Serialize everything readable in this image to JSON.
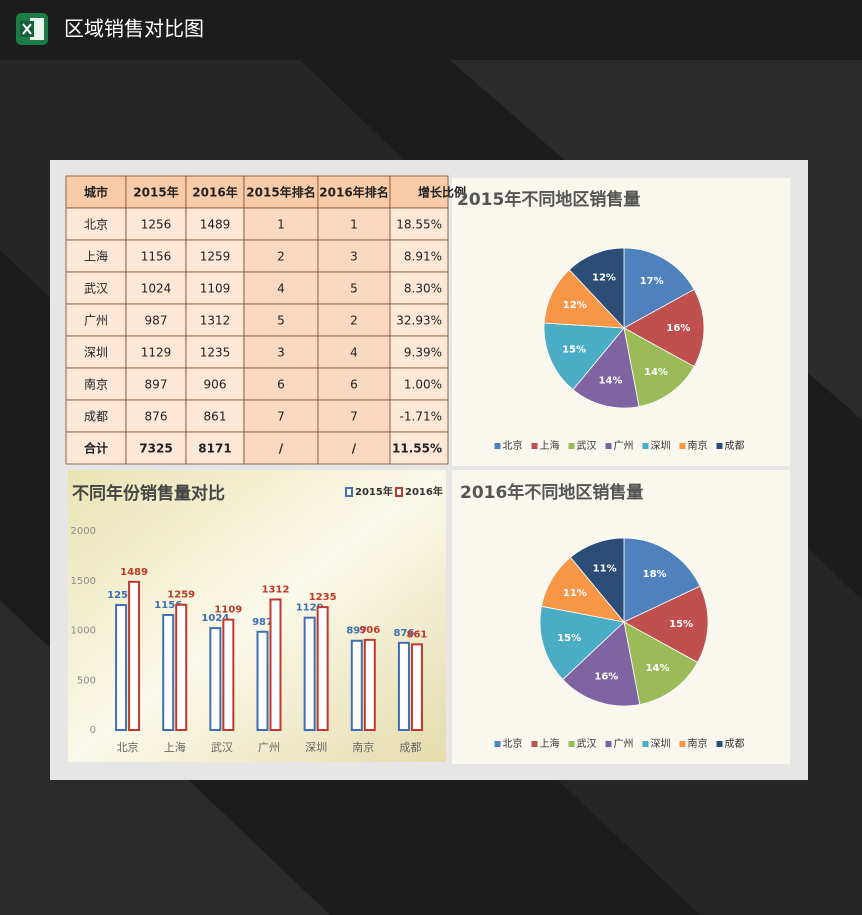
{
  "header": {
    "title": "区域销售对比图"
  },
  "table": {
    "columns": [
      "城市",
      "2015年",
      "2016年",
      "2015年排名",
      "2016年排名",
      "增长比例"
    ],
    "rows": [
      [
        "北京",
        "1256",
        "1489",
        "1",
        "1",
        "18.55%"
      ],
      [
        "上海",
        "1156",
        "1259",
        "2",
        "3",
        "8.91%"
      ],
      [
        "武汉",
        "1024",
        "1109",
        "4",
        "5",
        "8.30%"
      ],
      [
        "广州",
        "987",
        "1312",
        "5",
        "2",
        "32.93%"
      ],
      [
        "深圳",
        "1129",
        "1235",
        "3",
        "4",
        "9.39%"
      ],
      [
        "南京",
        "897",
        "906",
        "6",
        "6",
        "1.00%"
      ],
      [
        "成都",
        "876",
        "861",
        "7",
        "7",
        "-1.71%"
      ],
      [
        "合计",
        "7325",
        "8171",
        "/",
        "/",
        "11.55%"
      ]
    ]
  },
  "chart_data": [
    {
      "type": "bar",
      "title": "不同年份销售量对比",
      "categories": [
        "北京",
        "上海",
        "武汉",
        "广州",
        "深圳",
        "南京",
        "成都"
      ],
      "series": [
        {
          "name": "2015年",
          "color": "#3f6fb0",
          "values": [
            1256,
            1156,
            1024,
            987,
            1129,
            897,
            876
          ]
        },
        {
          "name": "2016年",
          "color": "#c0392b",
          "values": [
            1489,
            1259,
            1109,
            1312,
            1235,
            906,
            861
          ]
        }
      ],
      "ylim": [
        0,
        2000
      ],
      "yticks": [
        0,
        500,
        1000,
        1500,
        2000
      ],
      "legend": "top-right"
    },
    {
      "type": "pie",
      "title": "2015年不同地区销售量",
      "categories": [
        "北京",
        "上海",
        "武汉",
        "广州",
        "深圳",
        "南京",
        "成都"
      ],
      "values": [
        17,
        16,
        14,
        14,
        15,
        12,
        12
      ],
      "value_labels": [
        "17%",
        "16%",
        "14%",
        "14%",
        "15%",
        "12%",
        "12%"
      ],
      "colors": [
        "#4f81bd",
        "#c0504d",
        "#9bbb59",
        "#8064a2",
        "#4bacc6",
        "#f79646",
        "#2c4d75"
      ],
      "legend": "bottom"
    },
    {
      "type": "pie",
      "title": "2016年不同地区销售量",
      "categories": [
        "北京",
        "上海",
        "武汉",
        "广州",
        "深圳",
        "南京",
        "成都"
      ],
      "values": [
        18,
        15,
        14,
        16,
        15,
        11,
        11
      ],
      "value_labels": [
        "18%",
        "15%",
        "14%",
        "16%",
        "15%",
        "11%",
        "11%"
      ],
      "colors": [
        "#4f81bd",
        "#c0504d",
        "#9bbb59",
        "#8064a2",
        "#4bacc6",
        "#f79646",
        "#2c4d75"
      ],
      "legend": "bottom"
    }
  ]
}
